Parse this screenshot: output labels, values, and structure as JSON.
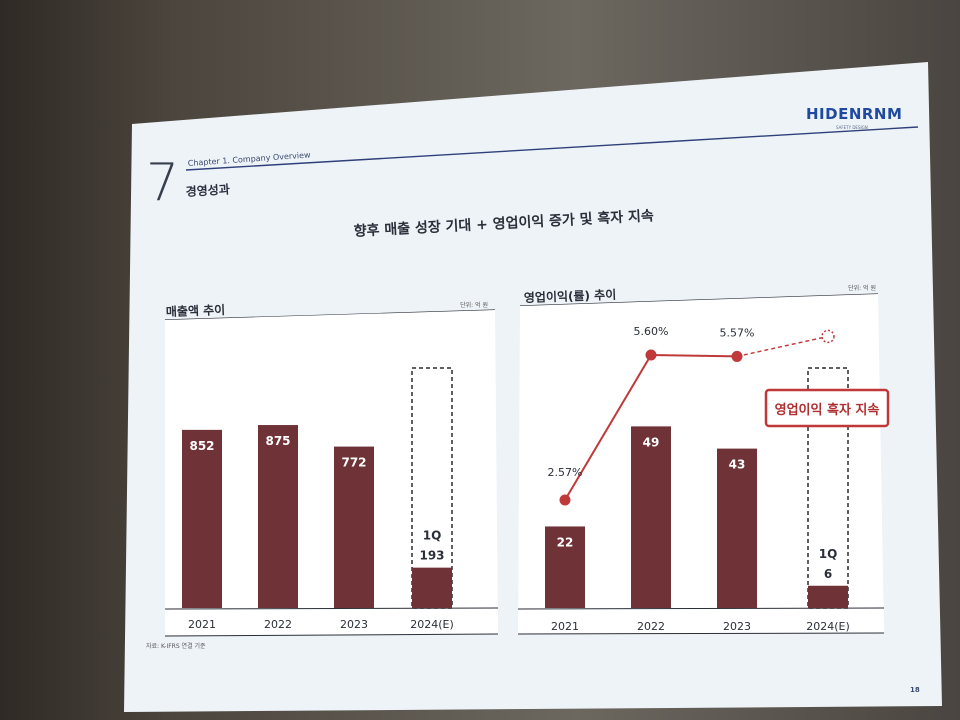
{
  "brand": {
    "logo_text": "HIDENRNM",
    "logo_sub": "SAFETY DESIGN"
  },
  "header": {
    "section_number": "7",
    "chapter": "Chapter 1. Company Overview",
    "section_title": "경영성과"
  },
  "headline": "향후 매출 성장 기대 + 영업이익 증가 및 흑자 지속",
  "footnote": "자료: K-IFRS 연결 기준",
  "page_number": "18",
  "colors": {
    "bar": "#6f3237",
    "line": "#c0393a",
    "accent_border": "#c0393a"
  },
  "chart_data": [
    {
      "type": "bar",
      "title": "매출액 추이",
      "unit": "단위: 억 원",
      "categories": [
        "2021",
        "2022",
        "2023",
        "2024(E)"
      ],
      "values": [
        852,
        875,
        772,
        193
      ],
      "value_labels": [
        "852",
        "875",
        "772",
        "193"
      ],
      "estimate_label": "1Q",
      "estimate_index": 3,
      "ylim": [
        0,
        1100
      ]
    },
    {
      "type": "bar",
      "title": "영업이익(률) 추이",
      "unit": "단위: 억 원",
      "categories": [
        "2021",
        "2022",
        "2023",
        "2024(E)"
      ],
      "values": [
        22,
        49,
        43,
        6
      ],
      "value_labels": [
        "22",
        "49",
        "43",
        "6"
      ],
      "estimate_label": "1Q",
      "estimate_index": 3,
      "ylim": [
        0,
        75
      ],
      "line": {
        "values": [
          2.57,
          5.6,
          5.57,
          null
        ],
        "labels": [
          "2.57%",
          "5.60%",
          "5.57%",
          ""
        ]
      },
      "callout": "영업이익 흑자 지속"
    }
  ]
}
